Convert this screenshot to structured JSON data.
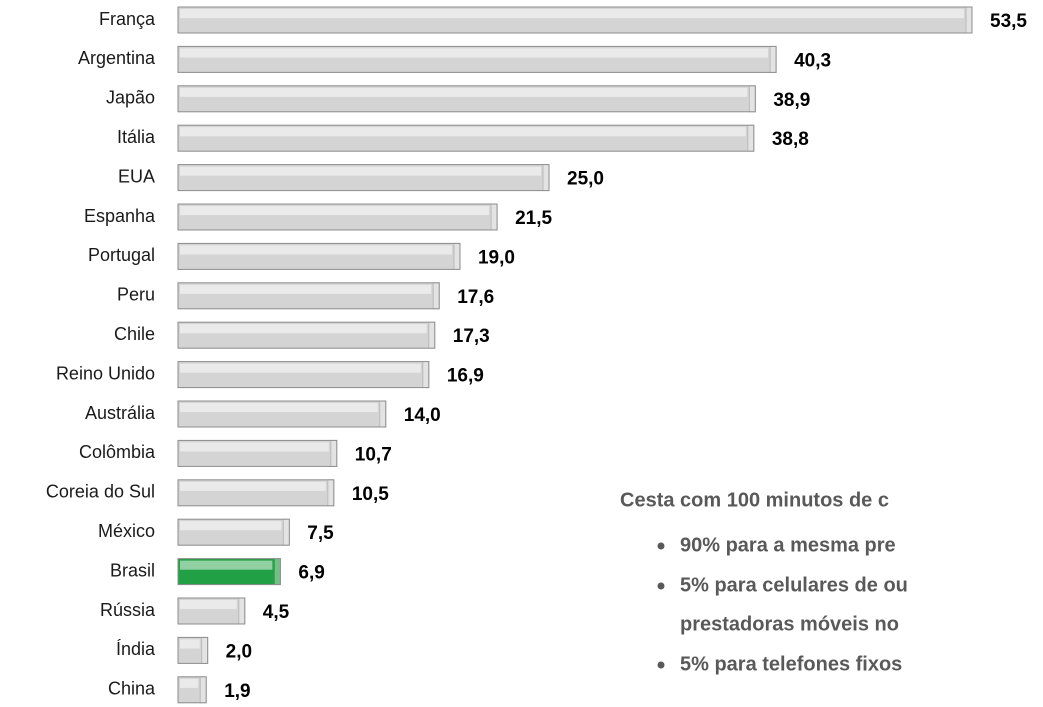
{
  "chart_data": {
    "type": "bar",
    "orientation": "horizontal",
    "categories": [
      "França",
      "Argentina",
      "Japão",
      "Itália",
      "EUA",
      "Espanha",
      "Portugal",
      "Peru",
      "Chile",
      "Reino Unido",
      "Austrália",
      "Colômbia",
      "Coreia do Sul",
      "México",
      "Brasil",
      "Rússia",
      "Índia",
      "China"
    ],
    "values": [
      53.5,
      40.3,
      38.9,
      38.8,
      25.0,
      21.5,
      19.0,
      17.6,
      17.3,
      16.9,
      14.0,
      10.7,
      10.5,
      7.5,
      6.9,
      4.5,
      2.0,
      1.9
    ],
    "value_labels": [
      "53,5",
      "40,3",
      "38,9",
      "38,8",
      "25,0",
      "21,5",
      "19,0",
      "17,6",
      "17,3",
      "16,9",
      "14,0",
      "10,7",
      "10,5",
      "7,5",
      "6,9",
      "4,5",
      "2,0",
      "1,9"
    ],
    "colors": [
      "#d4d4d4",
      "#d4d4d4",
      "#d4d4d4",
      "#d4d4d4",
      "#d4d4d4",
      "#d4d4d4",
      "#d4d4d4",
      "#d4d4d4",
      "#d4d4d4",
      "#d4d4d4",
      "#d4d4d4",
      "#d4d4d4",
      "#d4d4d4",
      "#d4d4d4",
      "#22a045",
      "#d4d4d4",
      "#d4d4d4",
      "#d4d4d4"
    ],
    "annotations": [
      "Cesta com 100 minutos de c",
      "90% para a mesma pre",
      "5% para celulares de ou",
      "prestadoras móveis no",
      "5% para telefones fixos"
    ]
  }
}
